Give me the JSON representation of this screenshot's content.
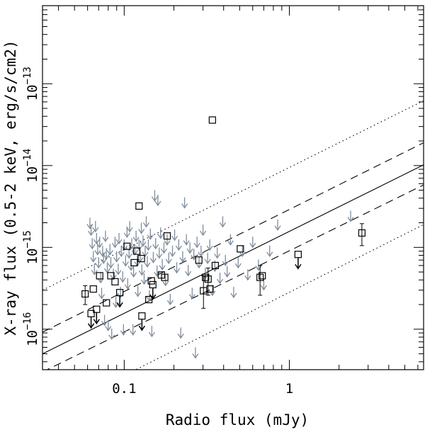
{
  "chart_data": {
    "type": "scatter",
    "title": "",
    "xlabel": "Radio flux (mJy)",
    "ylabel": "X-ray flux (0.5-2 keV, erg/s/cm2)",
    "xscale": "log",
    "yscale": "log",
    "xlim": [
      0.032,
      6.5
    ],
    "ylim": [
      3.2e-17,
      9e-13
    ],
    "grid": false,
    "legend": "none",
    "x_ticks": [
      {
        "value": 0.1,
        "label": "0.1"
      },
      {
        "value": 1,
        "label": "1"
      }
    ],
    "y_ticks": [
      {
        "value": 1e-16,
        "base": "10",
        "exp": "−16"
      },
      {
        "value": 1e-15,
        "base": "10",
        "exp": "−15"
      },
      {
        "value": 1e-14,
        "base": "10",
        "exp": "−14"
      },
      {
        "value": 1e-13,
        "base": "10",
        "exp": "−13"
      }
    ],
    "colors": {
      "axes": "#000000",
      "upper_limit": "#7f8d9c",
      "detection": "#000000"
    },
    "reference_lines": [
      {
        "style": "solid",
        "x": [
          0.032,
          6.5
        ],
        "y": [
          5e-17,
          1.02e-14
        ]
      },
      {
        "style": "dashed",
        "x": [
          0.032,
          6.5
        ],
        "y": [
          9.2e-17,
          1.9e-14
        ]
      },
      {
        "style": "dashed",
        "x": [
          0.032,
          6.5
        ],
        "y": [
          3e-17,
          5.8e-15
        ]
      },
      {
        "style": "dotted",
        "x": [
          0.032,
          6.5
        ],
        "y": [
          3e-16,
          6.2e-14
        ]
      },
      {
        "style": "dotted",
        "x": [
          0.032,
          6.5
        ],
        "y": [
          8.5e-18,
          1.9e-15
        ]
      }
    ],
    "detections": [
      {
        "x": 0.058,
        "y": 2.7e-16,
        "err": [
          2e-16,
          3.4e-16
        ]
      },
      {
        "x": 0.063,
        "y": 1.55e-16,
        "upper_limit": true
      },
      {
        "x": 0.065,
        "y": 3.1e-16
      },
      {
        "x": 0.068,
        "y": 1.75e-16,
        "upper_limit": true
      },
      {
        "x": 0.071,
        "y": 4.5e-16
      },
      {
        "x": 0.078,
        "y": 2.1e-16
      },
      {
        "x": 0.083,
        "y": 4.5e-16
      },
      {
        "x": 0.088,
        "y": 3.8e-16
      },
      {
        "x": 0.094,
        "y": 2.8e-16,
        "upper_limit": true
      },
      {
        "x": 0.104,
        "y": 1.03e-15
      },
      {
        "x": 0.115,
        "y": 6.5e-16
      },
      {
        "x": 0.119,
        "y": 9e-16
      },
      {
        "x": 0.123,
        "y": 3.2e-15
      },
      {
        "x": 0.127,
        "y": 7.3e-16
      },
      {
        "x": 0.128,
        "y": 1.45e-16,
        "upper_limit": true
      },
      {
        "x": 0.141,
        "y": 2.3e-16
      },
      {
        "x": 0.146,
        "y": 3.9e-16
      },
      {
        "x": 0.149,
        "y": 3.5e-16,
        "upper_limit": true
      },
      {
        "x": 0.168,
        "y": 4.6e-16
      },
      {
        "x": 0.176,
        "y": 4.3e-16
      },
      {
        "x": 0.182,
        "y": 1.38e-15
      },
      {
        "x": 0.283,
        "y": 7e-16
      },
      {
        "x": 0.302,
        "y": 2.95e-16,
        "err": [
          1.8e-16,
          4.5e-16
        ]
      },
      {
        "x": 0.311,
        "y": 4.3e-16
      },
      {
        "x": 0.322,
        "y": 4.1e-16,
        "err": [
          2.6e-16,
          5.6e-16
        ]
      },
      {
        "x": 0.331,
        "y": 3.1e-16
      },
      {
        "x": 0.342,
        "y": 3.6e-14
      },
      {
        "x": 0.356,
        "y": 6e-16
      },
      {
        "x": 0.505,
        "y": 9.6e-16
      },
      {
        "x": 0.665,
        "y": 4.3e-16,
        "err": [
          2.6e-16,
          6e-16
        ]
      },
      {
        "x": 0.685,
        "y": 4.5e-16
      },
      {
        "x": 1.13,
        "y": 8.2e-16,
        "upper_limit": true
      },
      {
        "x": 2.75,
        "y": 1.5e-15,
        "err": [
          1.05e-15,
          1.95e-15
        ]
      }
    ],
    "upper_limits": [
      [
        0.062,
        2.3e-15
      ],
      [
        0.063,
        1.9e-15
      ],
      [
        0.064,
        1.3e-15
      ],
      [
        0.065,
        9e-16
      ],
      [
        0.066,
        6.3e-16
      ],
      [
        0.067,
        2.1e-15
      ],
      [
        0.068,
        1.5e-15
      ],
      [
        0.069,
        1.1e-15
      ],
      [
        0.07,
        7.6e-16
      ],
      [
        0.071,
        1.35e-15
      ],
      [
        0.072,
        5e-16
      ],
      [
        0.073,
        3.2e-16
      ],
      [
        0.074,
        1.05e-15
      ],
      [
        0.075,
        8.6e-16
      ],
      [
        0.076,
        1.5e-16
      ],
      [
        0.077,
        1.6e-15
      ],
      [
        0.078,
        9.8e-16
      ],
      [
        0.079,
        6.6e-16
      ],
      [
        0.08,
        1.3e-16
      ],
      [
        0.082,
        1.1e-15
      ],
      [
        0.083,
        7.6e-16
      ],
      [
        0.084,
        1.02e-16
      ],
      [
        0.086,
        5.5e-16
      ],
      [
        0.088,
        1.35e-15
      ],
      [
        0.089,
        2.5e-16
      ],
      [
        0.09,
        9e-16
      ],
      [
        0.092,
        6.3e-16
      ],
      [
        0.093,
        1.5e-15
      ],
      [
        0.095,
        3.3e-16
      ],
      [
        0.096,
        1.05e-15
      ],
      [
        0.098,
        5.1e-16
      ],
      [
        0.099,
        1.15e-16
      ],
      [
        0.1,
        1.25e-15
      ],
      [
        0.102,
        8e-16
      ],
      [
        0.104,
        1.8e-15
      ],
      [
        0.105,
        4.2e-16
      ],
      [
        0.107,
        1e-15
      ],
      [
        0.108,
        2.1e-15
      ],
      [
        0.11,
        7.1e-16
      ],
      [
        0.111,
        1.3e-15
      ],
      [
        0.113,
        1.15e-16
      ],
      [
        0.114,
        5.9e-16
      ],
      [
        0.116,
        1.1e-15
      ],
      [
        0.118,
        1.6e-15
      ],
      [
        0.12,
        8e-16
      ],
      [
        0.121,
        3.4e-16
      ],
      [
        0.123,
        1.25e-15
      ],
      [
        0.125,
        9e-16
      ],
      [
        0.127,
        2e-15
      ],
      [
        0.128,
        6.2e-16
      ],
      [
        0.13,
        1.4e-15
      ],
      [
        0.132,
        4.8e-16
      ],
      [
        0.134,
        1.05e-15
      ],
      [
        0.136,
        2.4e-15
      ],
      [
        0.138,
        7.8e-16
      ],
      [
        0.14,
        1.25e-15
      ],
      [
        0.142,
        3e-16
      ],
      [
        0.144,
        1.7e-15
      ],
      [
        0.147,
        1.1e-16
      ],
      [
        0.15,
        8.8e-16
      ],
      [
        0.153,
        5e-15
      ],
      [
        0.155,
        1.3e-15
      ],
      [
        0.158,
        6e-16
      ],
      [
        0.16,
        4.4e-15
      ],
      [
        0.163,
        1e-15
      ],
      [
        0.166,
        1.75e-15
      ],
      [
        0.17,
        7.2e-16
      ],
      [
        0.174,
        1.15e-15
      ],
      [
        0.178,
        4.6e-16
      ],
      [
        0.182,
        1.45e-15
      ],
      [
        0.186,
        8.6e-16
      ],
      [
        0.19,
        2.7e-16
      ],
      [
        0.196,
        1.05e-15
      ],
      [
        0.202,
        1.65e-15
      ],
      [
        0.208,
        6.6e-16
      ],
      [
        0.214,
        1.25e-15
      ],
      [
        0.22,
        1.05e-16
      ],
      [
        0.226,
        9e-16
      ],
      [
        0.232,
        4.1e-15
      ],
      [
        0.238,
        1.45e-15
      ],
      [
        0.244,
        6.1e-16
      ],
      [
        0.25,
        1.15e-15
      ],
      [
        0.258,
        3.2e-16
      ],
      [
        0.264,
        9.6e-16
      ],
      [
        0.27,
        6e-17
      ],
      [
        0.276,
        1.35e-15
      ],
      [
        0.284,
        7.6e-16
      ],
      [
        0.292,
        1.05e-15
      ],
      [
        0.3,
        1.9e-15
      ],
      [
        0.31,
        5.6e-16
      ],
      [
        0.32,
        8.6e-16
      ],
      [
        0.33,
        1.25e-15
      ],
      [
        0.342,
        3.5e-16
      ],
      [
        0.354,
        6.9e-16
      ],
      [
        0.366,
        1e-15
      ],
      [
        0.38,
        4.9e-16
      ],
      [
        0.395,
        2.4e-15
      ],
      [
        0.41,
        8.1e-16
      ],
      [
        0.42,
        5.9e-16
      ],
      [
        0.44,
        1.45e-15
      ],
      [
        0.46,
        3.3e-16
      ],
      [
        0.49,
        7.6e-16
      ],
      [
        0.52,
        1.05e-15
      ],
      [
        0.56,
        5.4e-16
      ],
      [
        0.6,
        1.35e-15
      ],
      [
        0.65,
        7.1e-16
      ],
      [
        0.7,
        4.1e-16
      ],
      [
        0.76,
        1.05e-15
      ],
      [
        0.85,
        2.2e-15
      ],
      [
        2.35,
        2.8e-15
      ]
    ]
  }
}
